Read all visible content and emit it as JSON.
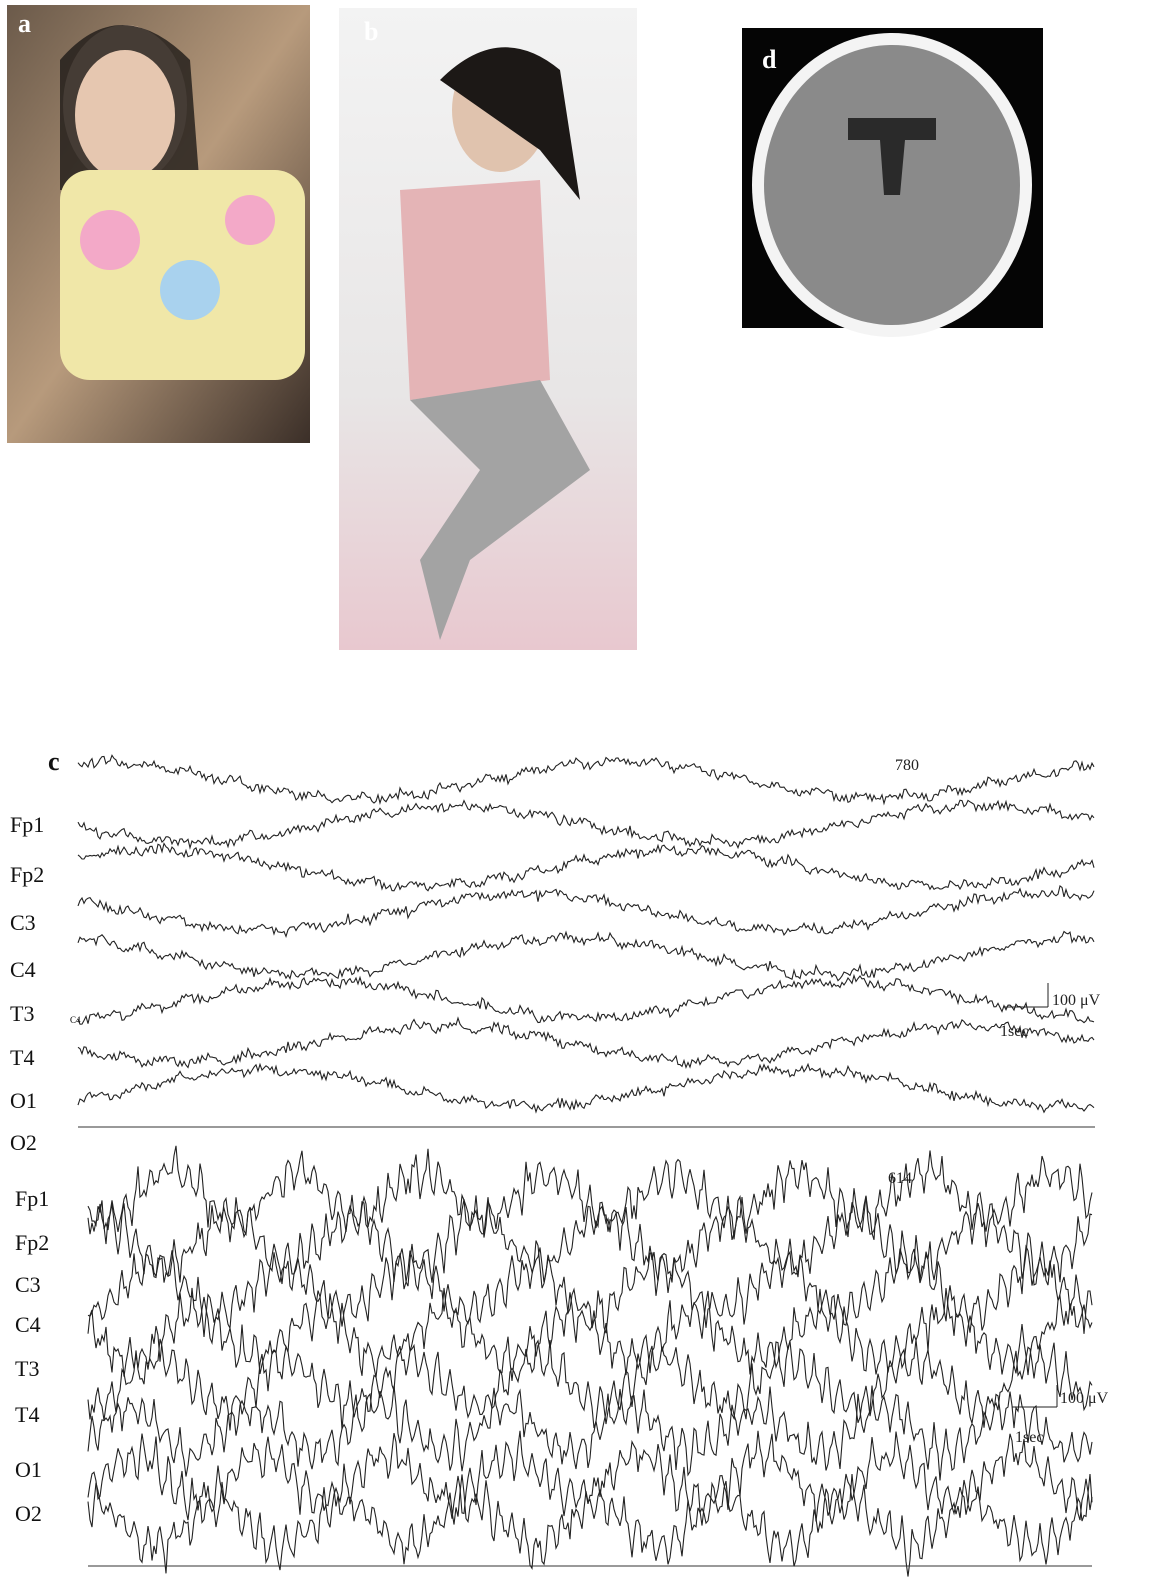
{
  "panels": {
    "a": {
      "label": "a"
    },
    "b": {
      "label": "b"
    },
    "d": {
      "label": "d"
    },
    "c": {
      "label": "c",
      "segments": [
        {
          "number": "780",
          "extra_label": "C4",
          "channels": [
            "Fp1",
            "Fp2",
            "C3",
            "C4",
            "T3",
            "T4",
            "O1",
            "O2"
          ],
          "amplitude": "100 μV",
          "time": "1sec"
        },
        {
          "number": "614",
          "channels": [
            "Fp1",
            "Fp2",
            "C3",
            "C4",
            "T3",
            "T4",
            "O1",
            "O2"
          ],
          "amplitude": "100 μV",
          "time": "1sec"
        }
      ]
    }
  }
}
